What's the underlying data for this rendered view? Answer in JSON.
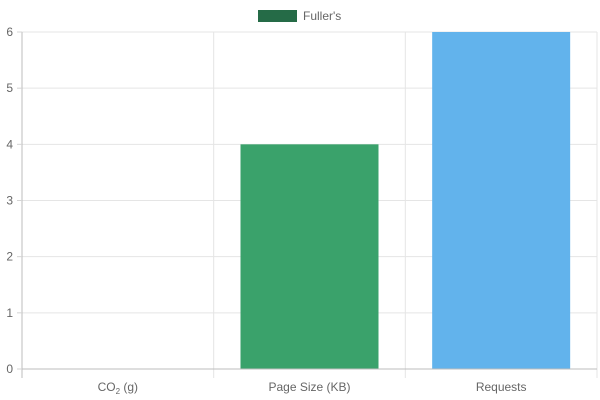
{
  "chart_data": {
    "type": "bar",
    "categories": [
      {
        "parts": [
          {
            "text": "CO"
          },
          {
            "text": "2",
            "sub": true
          },
          {
            "text": " (g)"
          }
        ]
      },
      {
        "parts": [
          {
            "text": "Page Size (KB)"
          }
        ]
      },
      {
        "parts": [
          {
            "text": "Requests"
          }
        ]
      }
    ],
    "category_labels": [
      "CO2 (g)",
      "Page Size (KB)",
      "Requests"
    ],
    "series": [
      {
        "name": "Fuller's",
        "values": [
          0,
          4,
          6
        ],
        "colors": [
          "#3aa26b",
          "#3aa26b",
          "#62b3ec"
        ]
      }
    ],
    "legend": {
      "position": "top-center",
      "swatch_color": "#256b47"
    },
    "ylim": [
      0,
      6
    ],
    "yticks": [
      0,
      1,
      2,
      3,
      4,
      5,
      6
    ],
    "grid": true,
    "title": "",
    "xlabel": "",
    "ylabel": ""
  }
}
